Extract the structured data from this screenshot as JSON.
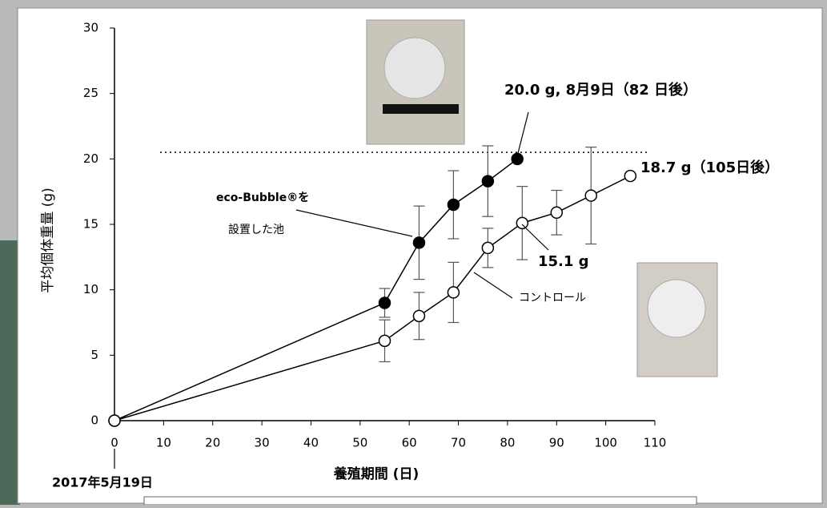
{
  "chart_data": {
    "type": "line",
    "y_label": "平均個体重量 (g)",
    "x_label": "養殖期間 (日)",
    "xlim": [
      0,
      110
    ],
    "xticks": [
      0,
      10,
      20,
      30,
      40,
      50,
      60,
      70,
      80,
      90,
      100,
      110
    ],
    "ylim": [
      0,
      30
    ],
    "yticks": [
      0,
      5,
      10,
      15,
      20,
      25,
      30
    ],
    "reference_line": 20.5,
    "series": [
      {
        "color": "#000000",
        "marker": "filled",
        "x": [
          0,
          55,
          62,
          69,
          76,
          82
        ],
        "values": [
          0,
          9.0,
          13.6,
          16.5,
          18.3,
          20.0
        ],
        "errors": [
          null,
          1.1,
          2.8,
          2.6,
          2.7,
          null
        ]
      },
      {
        "color": "#000000",
        "marker": "open",
        "x": [
          0,
          55,
          62,
          69,
          76,
          83,
          90,
          97,
          105
        ],
        "values": [
          0,
          6.1,
          8.0,
          9.8,
          13.2,
          15.1,
          15.9,
          17.2,
          18.7
        ],
        "errors": [
          null,
          1.6,
          1.8,
          2.3,
          1.5,
          2.8,
          1.7,
          3.7,
          null
        ]
      }
    ],
    "annotations": [
      "20.0 g, 8月9日（82 日後）",
      "18.7 g（105日後）",
      "15.1 g",
      "eco-Bubble®を",
      "設置した池",
      "コントロール",
      "2017年5月19日"
    ]
  }
}
